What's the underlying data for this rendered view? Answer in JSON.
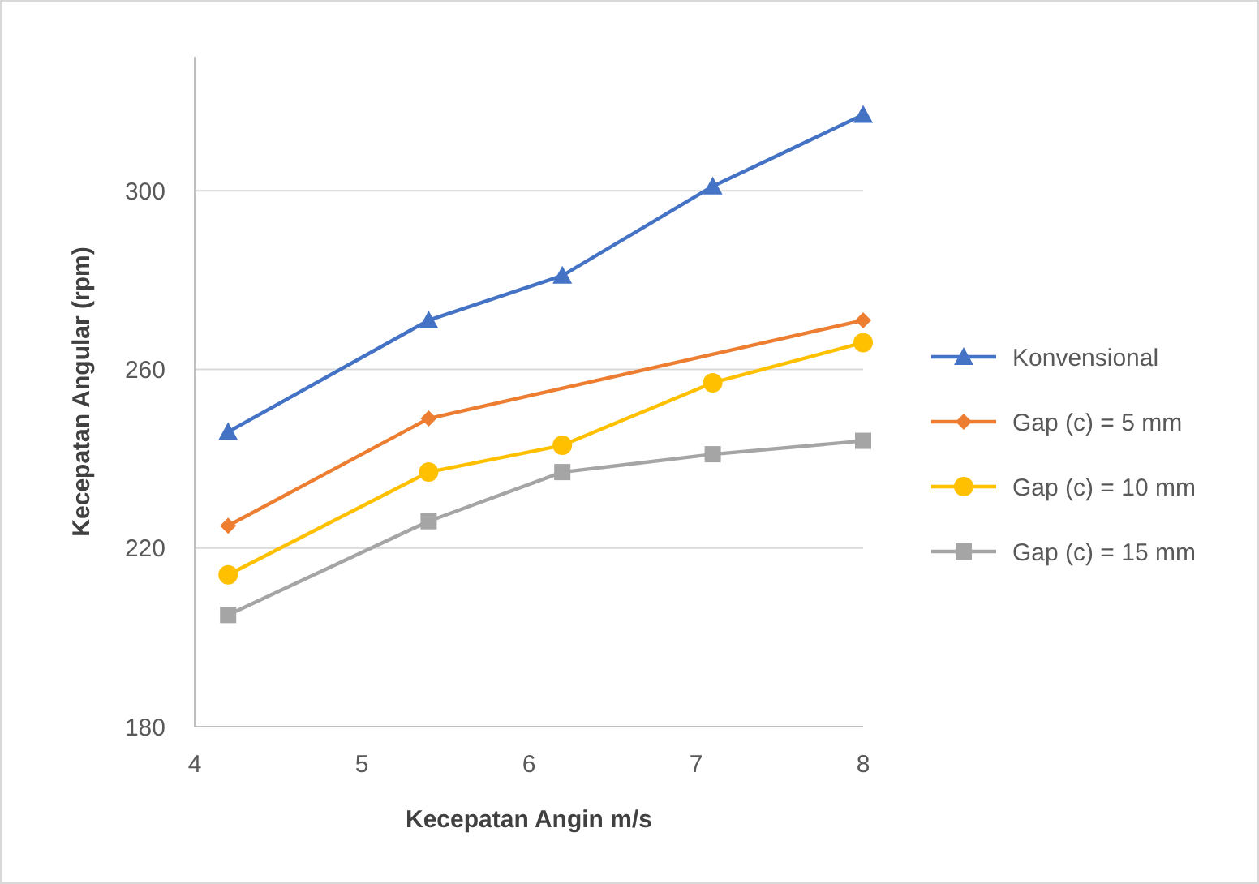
{
  "chart_data": {
    "type": "line",
    "xlabel": "Kecepatan Angin m/s",
    "ylabel": "Kecepatan Angular (rpm)",
    "xlim": [
      4,
      8
    ],
    "xticks": [
      4,
      5,
      6,
      7,
      8
    ],
    "ylim": [
      180,
      330
    ],
    "yticks": [
      180,
      220,
      260,
      300
    ],
    "grid": "y",
    "legend": "right",
    "series": [
      {
        "name": "Konvensional",
        "color": "#4472c4",
        "marker": "triangle",
        "x": [
          4.2,
          5.4,
          6.2,
          7.1,
          8
        ],
        "values": [
          246,
          271,
          281,
          301,
          317
        ]
      },
      {
        "name": "Gap (c) = 5 mm",
        "color": "#ed7d31",
        "marker": "diamond",
        "x": [
          4.2,
          5.4,
          8
        ],
        "values": [
          225,
          249,
          271
        ]
      },
      {
        "name": "Gap (c) = 10 mm",
        "color": "#ffc000",
        "marker": "circle",
        "x": [
          4.2,
          5.4,
          6.2,
          7.1,
          8
        ],
        "values": [
          214,
          237,
          243,
          257,
          266
        ]
      },
      {
        "name": "Gap (c) = 15 mm",
        "color": "#a5a5a5",
        "marker": "square",
        "x": [
          4.2,
          5.4,
          6.2,
          7.1,
          8
        ],
        "values": [
          205,
          226,
          237,
          241,
          244
        ]
      }
    ]
  }
}
